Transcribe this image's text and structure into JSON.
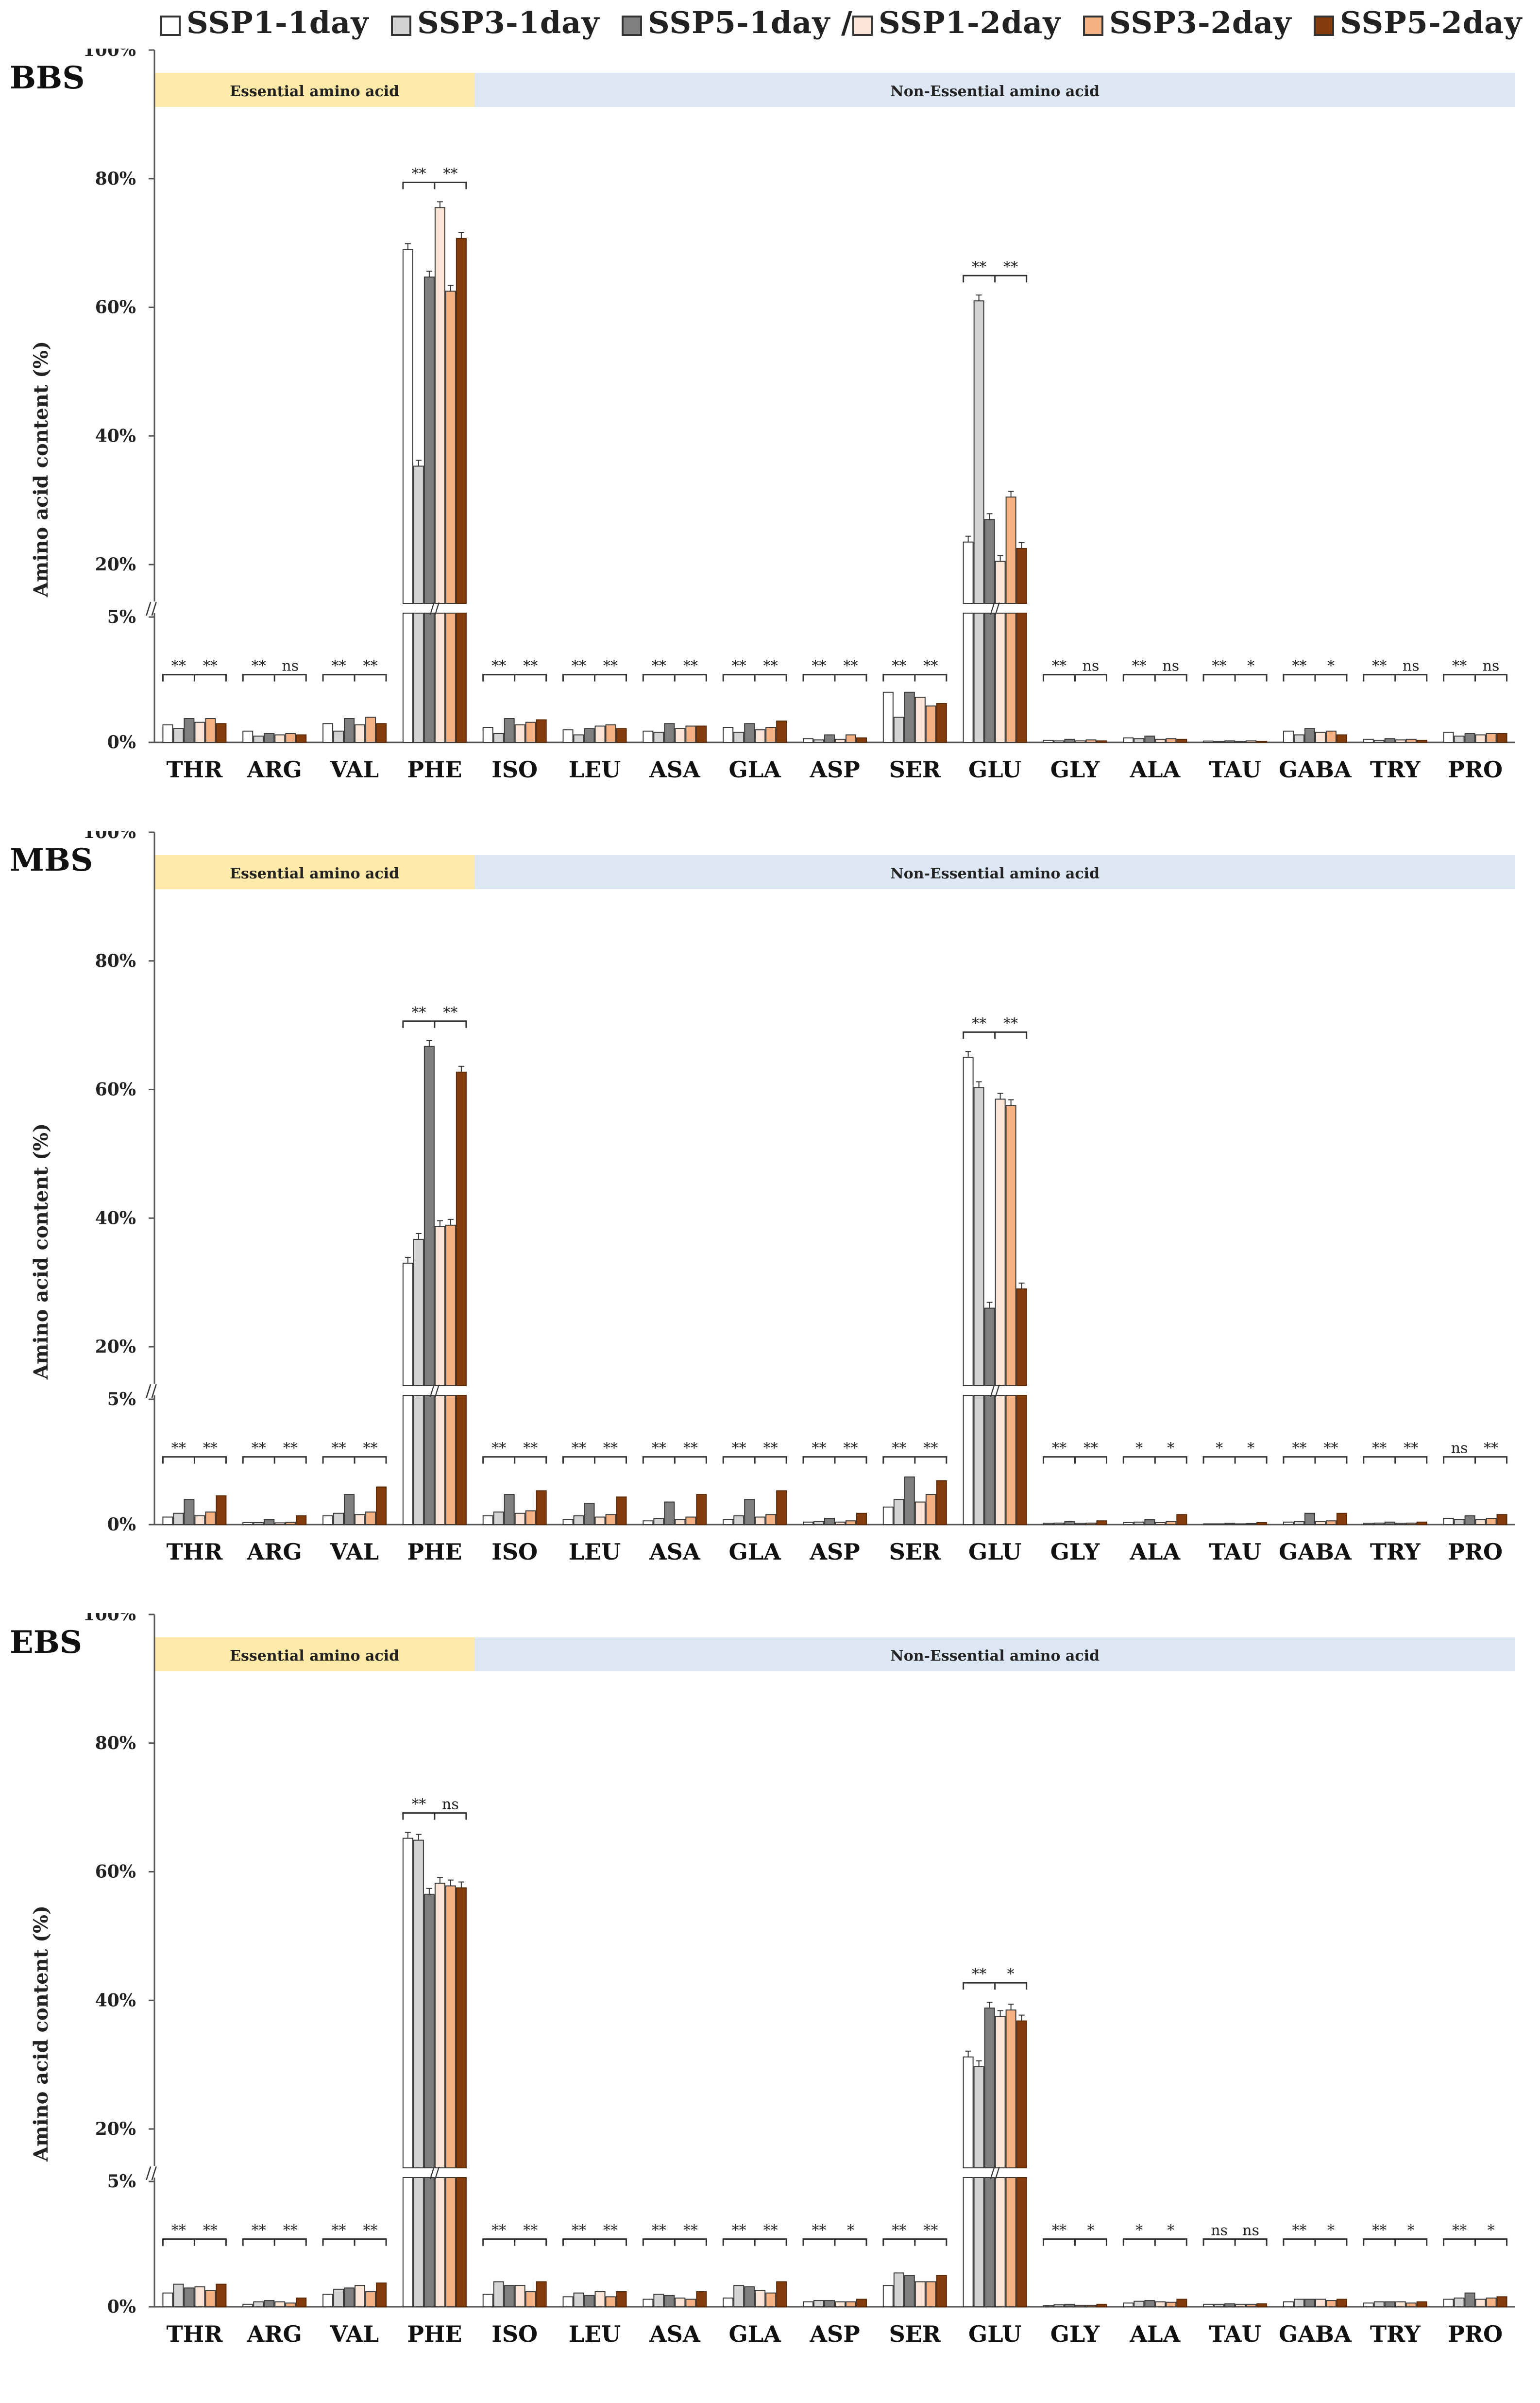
{
  "legend": [
    {
      "label": "SSP1-1day",
      "color": "#ffffff"
    },
    {
      "label": "SSP3-1day",
      "color": "#d4d4d4"
    },
    {
      "label": "SSP5-1day /",
      "color": "#7f7f7f"
    },
    {
      "label": "SSP1-2day",
      "color": "#fbe5d6"
    },
    {
      "label": "SSP3-2day",
      "color": "#f4b183"
    },
    {
      "label": "SSP5-2day",
      "color": "#843c0c"
    }
  ],
  "chart_data": [
    {
      "type": "bar",
      "title": "BBS",
      "ylabel": "Amino acid content (%)",
      "yticks_lower": [
        "0%",
        "5%"
      ],
      "yticks_upper": [
        "20%",
        "40%",
        "60%",
        "80%",
        "100%"
      ],
      "ylim_lower": [
        0,
        5
      ],
      "ylim_upper": [
        20,
        100
      ],
      "axis_break": true,
      "grid": false,
      "legend_position": "top",
      "bands": [
        {
          "label": "Essential amino acid",
          "color": "#fde9a8",
          "from": "THR",
          "to": "PHE_ISO_mid"
        },
        {
          "label": "Non-Essential amino acid",
          "color": "#dde7f3",
          "from": "PHE_ISO_mid",
          "to": "PRO"
        }
      ],
      "categories": [
        "THR",
        "ARG",
        "VAL",
        "PHE",
        "ISO",
        "LEU",
        "ASA",
        "GLA",
        "ASP",
        "SER",
        "GLU",
        "GLY",
        "ALA",
        "TAU",
        "GABA",
        "TRY",
        "PRO"
      ],
      "series": [
        {
          "name": "SSP1-1day",
          "values": [
            0.7,
            0.45,
            0.75,
            69.0,
            0.6,
            0.5,
            0.45,
            0.6,
            0.15,
            2.0,
            23.5,
            0.08,
            0.18,
            0.05,
            0.45,
            0.12,
            0.4
          ]
        },
        {
          "name": "SSP3-1day",
          "values": [
            0.55,
            0.25,
            0.45,
            35.3,
            0.35,
            0.3,
            0.4,
            0.4,
            0.1,
            1.0,
            61.0,
            0.06,
            0.15,
            0.04,
            0.3,
            0.08,
            0.25
          ]
        },
        {
          "name": "SSP5-1day /",
          "values": [
            0.95,
            0.35,
            0.95,
            64.7,
            0.95,
            0.55,
            0.75,
            0.75,
            0.3,
            2.0,
            27.0,
            0.12,
            0.25,
            0.06,
            0.55,
            0.15,
            0.35
          ]
        },
        {
          "name": "SSP1-2day",
          "values": [
            0.8,
            0.3,
            0.7,
            75.5,
            0.7,
            0.65,
            0.55,
            0.5,
            0.12,
            1.8,
            17.8,
            0.06,
            0.12,
            0.04,
            0.4,
            0.1,
            0.3
          ]
        },
        {
          "name": "SSP3-2day",
          "values": [
            0.95,
            0.35,
            1.0,
            62.5,
            0.8,
            0.7,
            0.65,
            0.6,
            0.3,
            1.45,
            30.5,
            0.1,
            0.15,
            0.06,
            0.45,
            0.12,
            0.35
          ]
        },
        {
          "name": "SSP5-2day",
          "values": [
            0.75,
            0.3,
            0.75,
            70.7,
            0.9,
            0.55,
            0.65,
            0.85,
            0.18,
            1.55,
            22.5,
            0.06,
            0.12,
            0.04,
            0.3,
            0.08,
            0.35
          ]
        }
      ],
      "significance": [
        [
          "**",
          "**"
        ],
        [
          "**",
          "ns"
        ],
        [
          "**",
          "**"
        ],
        [
          "**",
          "**"
        ],
        [
          "**",
          "**"
        ],
        [
          "**",
          "**"
        ],
        [
          "**",
          "**"
        ],
        [
          "**",
          "**"
        ],
        [
          "**",
          "**"
        ],
        [
          "**",
          "**"
        ],
        [
          "**",
          "**"
        ],
        [
          "**",
          "ns"
        ],
        [
          "**",
          "ns"
        ],
        [
          "**",
          "*"
        ],
        [
          "**",
          "*"
        ],
        [
          "**",
          "ns"
        ],
        [
          "**",
          "ns"
        ]
      ]
    },
    {
      "type": "bar",
      "title": "MBS",
      "ylabel": "Amino acid content (%)",
      "yticks_lower": [
        "0%",
        "5%"
      ],
      "yticks_upper": [
        "20%",
        "40%",
        "60%",
        "80%",
        "100%"
      ],
      "ylim_lower": [
        0,
        5
      ],
      "ylim_upper": [
        20,
        100
      ],
      "axis_break": true,
      "grid": false,
      "legend_position": "top",
      "bands": [
        {
          "label": "Essential amino acid",
          "color": "#fde9a8"
        },
        {
          "label": "Non-Essential amino acid",
          "color": "#dde7f3"
        }
      ],
      "categories": [
        "THR",
        "ARG",
        "VAL",
        "PHE",
        "ISO",
        "LEU",
        "ASA",
        "GLA",
        "ASP",
        "SER",
        "GLU",
        "GLY",
        "ALA",
        "TAU",
        "GABA",
        "TRY",
        "PRO"
      ],
      "series": [
        {
          "name": "SSP1-1day",
          "values": [
            0.3,
            0.08,
            0.35,
            33.0,
            0.35,
            0.2,
            0.15,
            0.2,
            0.1,
            0.7,
            65.0,
            0.05,
            0.08,
            0.03,
            0.1,
            0.05,
            0.25
          ]
        },
        {
          "name": "SSP3-1day",
          "values": [
            0.45,
            0.08,
            0.45,
            36.7,
            0.5,
            0.35,
            0.25,
            0.35,
            0.12,
            1.0,
            60.3,
            0.06,
            0.1,
            0.03,
            0.12,
            0.06,
            0.2
          ]
        },
        {
          "name": "SSP5-1day /",
          "values": [
            1.0,
            0.2,
            1.2,
            66.7,
            1.2,
            0.85,
            0.9,
            1.0,
            0.25,
            1.9,
            26.0,
            0.12,
            0.2,
            0.05,
            0.45,
            0.1,
            0.35
          ]
        },
        {
          "name": "SSP1-2day",
          "values": [
            0.35,
            0.07,
            0.4,
            38.7,
            0.45,
            0.3,
            0.2,
            0.3,
            0.1,
            0.9,
            58.5,
            0.05,
            0.08,
            0.03,
            0.12,
            0.05,
            0.2
          ]
        },
        {
          "name": "SSP3-2day",
          "values": [
            0.5,
            0.09,
            0.5,
            38.9,
            0.55,
            0.4,
            0.3,
            0.4,
            0.15,
            1.2,
            57.5,
            0.06,
            0.12,
            0.04,
            0.15,
            0.06,
            0.25
          ]
        },
        {
          "name": "SSP5-2day",
          "values": [
            1.15,
            0.35,
            1.5,
            62.7,
            1.35,
            1.1,
            1.2,
            1.35,
            0.45,
            1.75,
            29.0,
            0.15,
            0.4,
            0.08,
            0.45,
            0.1,
            0.4
          ]
        }
      ],
      "significance": [
        [
          "**",
          "**"
        ],
        [
          "**",
          "**"
        ],
        [
          "**",
          "**"
        ],
        [
          "**",
          "**"
        ],
        [
          "**",
          "**"
        ],
        [
          "**",
          "**"
        ],
        [
          "**",
          "**"
        ],
        [
          "**",
          "**"
        ],
        [
          "**",
          "**"
        ],
        [
          "**",
          "**"
        ],
        [
          "**",
          "**"
        ],
        [
          "**",
          "**"
        ],
        [
          "*",
          "*"
        ],
        [
          "*",
          "*"
        ],
        [
          "**",
          "**"
        ],
        [
          "**",
          "**"
        ],
        [
          "ns",
          "**"
        ]
      ]
    },
    {
      "type": "bar",
      "title": "EBS",
      "ylabel": "Amino acid content (%)",
      "yticks_lower": [
        "0%",
        "5%"
      ],
      "yticks_upper": [
        "20%",
        "40%",
        "60%",
        "80%",
        "100%"
      ],
      "ylim_lower": [
        0,
        5
      ],
      "ylim_upper": [
        20,
        100
      ],
      "axis_break": true,
      "grid": false,
      "legend_position": "top",
      "bands": [
        {
          "label": "Essential amino acid",
          "color": "#fde9a8"
        },
        {
          "label": "Non-Essential amino acid",
          "color": "#dde7f3"
        }
      ],
      "categories": [
        "THR",
        "ARG",
        "VAL",
        "PHE",
        "ISO",
        "LEU",
        "ASA",
        "GLA",
        "ASP",
        "SER",
        "GLU",
        "GLY",
        "ALA",
        "TAU",
        "GABA",
        "TRY",
        "PRO"
      ],
      "series": [
        {
          "name": "SSP1-1day",
          "values": [
            0.55,
            0.1,
            0.5,
            65.2,
            0.5,
            0.4,
            0.3,
            0.35,
            0.2,
            0.85,
            31.2,
            0.05,
            0.15,
            0.1,
            0.2,
            0.15,
            0.3
          ]
        },
        {
          "name": "SSP3-1day",
          "values": [
            0.9,
            0.2,
            0.7,
            64.9,
            1.0,
            0.55,
            0.5,
            0.85,
            0.25,
            1.35,
            29.7,
            0.08,
            0.22,
            0.1,
            0.3,
            0.2,
            0.35
          ]
        },
        {
          "name": "SSP5-1day /",
          "values": [
            0.75,
            0.25,
            0.75,
            56.5,
            0.85,
            0.45,
            0.45,
            0.8,
            0.25,
            1.25,
            38.8,
            0.1,
            0.25,
            0.12,
            0.3,
            0.2,
            0.55
          ]
        },
        {
          "name": "SSP1-2day",
          "values": [
            0.8,
            0.2,
            0.85,
            58.2,
            0.85,
            0.6,
            0.35,
            0.65,
            0.2,
            1.0,
            37.5,
            0.06,
            0.2,
            0.1,
            0.3,
            0.2,
            0.3
          ]
        },
        {
          "name": "SSP3-2day",
          "values": [
            0.65,
            0.15,
            0.6,
            57.8,
            0.6,
            0.4,
            0.3,
            0.55,
            0.2,
            1.0,
            38.5,
            0.06,
            0.18,
            0.1,
            0.25,
            0.15,
            0.35
          ]
        },
        {
          "name": "SSP5-2day",
          "values": [
            0.9,
            0.35,
            0.95,
            57.5,
            1.0,
            0.6,
            0.6,
            1.0,
            0.3,
            1.25,
            36.8,
            0.1,
            0.3,
            0.12,
            0.3,
            0.2,
            0.4
          ]
        }
      ],
      "significance": [
        [
          "**",
          "**"
        ],
        [
          "**",
          "**"
        ],
        [
          "**",
          "**"
        ],
        [
          "**",
          "ns"
        ],
        [
          "**",
          "**"
        ],
        [
          "**",
          "**"
        ],
        [
          "**",
          "**"
        ],
        [
          "**",
          "**"
        ],
        [
          "**",
          "*"
        ],
        [
          "**",
          "**"
        ],
        [
          "**",
          "*"
        ],
        [
          "**",
          "*"
        ],
        [
          "*",
          "*"
        ],
        [
          "ns",
          "ns"
        ],
        [
          "**",
          "*"
        ],
        [
          "**",
          "*"
        ],
        [
          "**",
          "*"
        ]
      ]
    }
  ]
}
